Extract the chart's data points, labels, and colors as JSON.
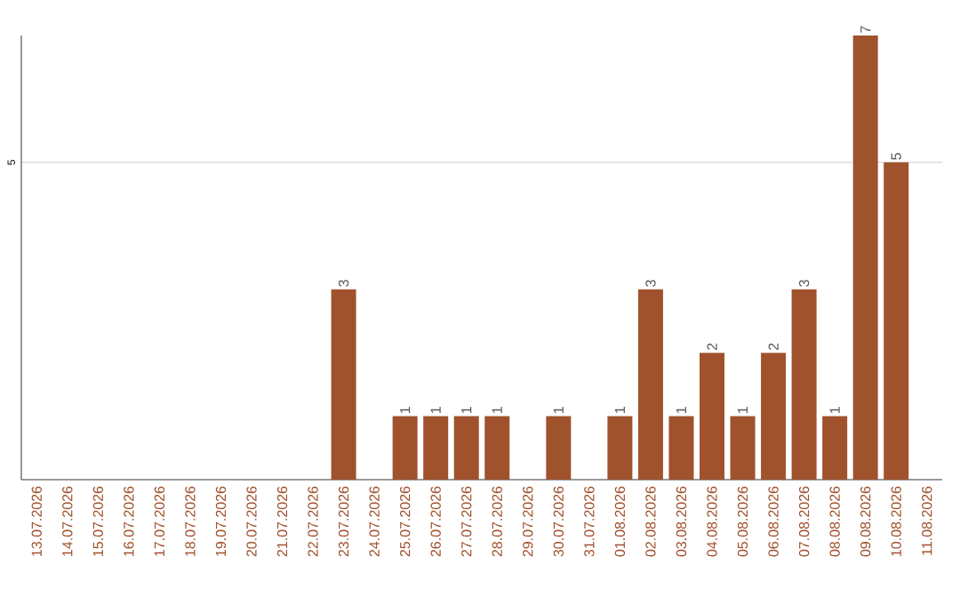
{
  "chart_data": {
    "type": "bar",
    "categories": [
      "13.07.2026",
      "14.07.2026",
      "15.07.2026",
      "16.07.2026",
      "17.07.2026",
      "18.07.2026",
      "19.07.2026",
      "20.07.2026",
      "21.07.2026",
      "22.07.2026",
      "23.07.2026",
      "24.07.2026",
      "25.07.2026",
      "26.07.2026",
      "27.07.2026",
      "28.07.2026",
      "29.07.2026",
      "30.07.2026",
      "31.07.2026",
      "01.08.2026",
      "02.08.2026",
      "03.08.2026",
      "04.08.2026",
      "05.08.2026",
      "06.08.2026",
      "07.08.2026",
      "08.08.2026",
      "09.08.2026",
      "10.08.2026",
      "11.08.2026"
    ],
    "values": [
      0,
      0,
      0,
      0,
      0,
      0,
      0,
      0,
      0,
      0,
      3,
      0,
      1,
      1,
      1,
      1,
      0,
      1,
      0,
      1,
      3,
      1,
      2,
      1,
      2,
      3,
      1,
      7,
      5,
      0
    ],
    "value_labels": [
      null,
      null,
      null,
      null,
      null,
      null,
      null,
      null,
      null,
      null,
      "3",
      null,
      "1",
      "1",
      "1",
      "1",
      null,
      "1",
      null,
      "1",
      "3",
      "1",
      "2",
      "1",
      "2",
      "3",
      "1",
      "7",
      "5",
      null
    ],
    "color": "#a0522d",
    "ylim": [
      0,
      7
    ],
    "yticks": [
      5
    ],
    "grid": "y"
  }
}
